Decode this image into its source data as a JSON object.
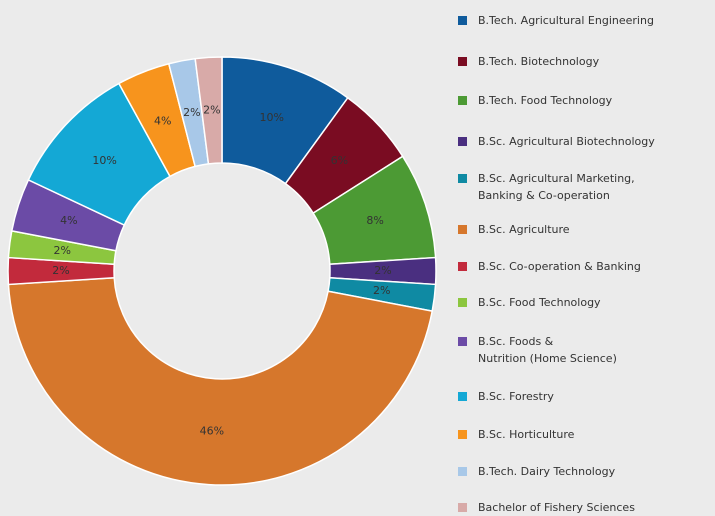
{
  "chart_data": {
    "type": "donut",
    "categories": [
      "B.Tech. Agricultural Engineering",
      "B.Tech. Biotechnology",
      "B.Tech. Food Technology",
      "B.Sc. Agricultural Biotechnology",
      "B.Sc. Agricultural Marketing,\nBanking & Co-operation",
      "B.Sc. Agriculture",
      "B.Sc. Co-operation & Banking",
      "B.Sc. Food Technology",
      "B.Sc. Foods &\nNutrition (Home Science)",
      "B.Sc. Forestry",
      "B.Sc. Horticulture",
      "B.Tech. Dairy Technology",
      "Bachelor of Fishery Sciences"
    ],
    "values": [
      10,
      6,
      8,
      2,
      2,
      46,
      2,
      2,
      4,
      10,
      4,
      2,
      2
    ],
    "value_labels": [
      "10%",
      "6%",
      "8%",
      "2%",
      "2%",
      "46%",
      "2%",
      "2%",
      "4%",
      "10%",
      "4%",
      "2%",
      "2%"
    ],
    "colors": [
      "#0f5b9c",
      "#7a0c22",
      "#4c9a34",
      "#4a2f80",
      "#0f8aa3",
      "#d6772c",
      "#c22a3c",
      "#8cc63f",
      "#6b4ba6",
      "#14a8d5",
      "#f7941d",
      "#a8c8e8",
      "#d8aaa8"
    ],
    "legend": "right"
  }
}
